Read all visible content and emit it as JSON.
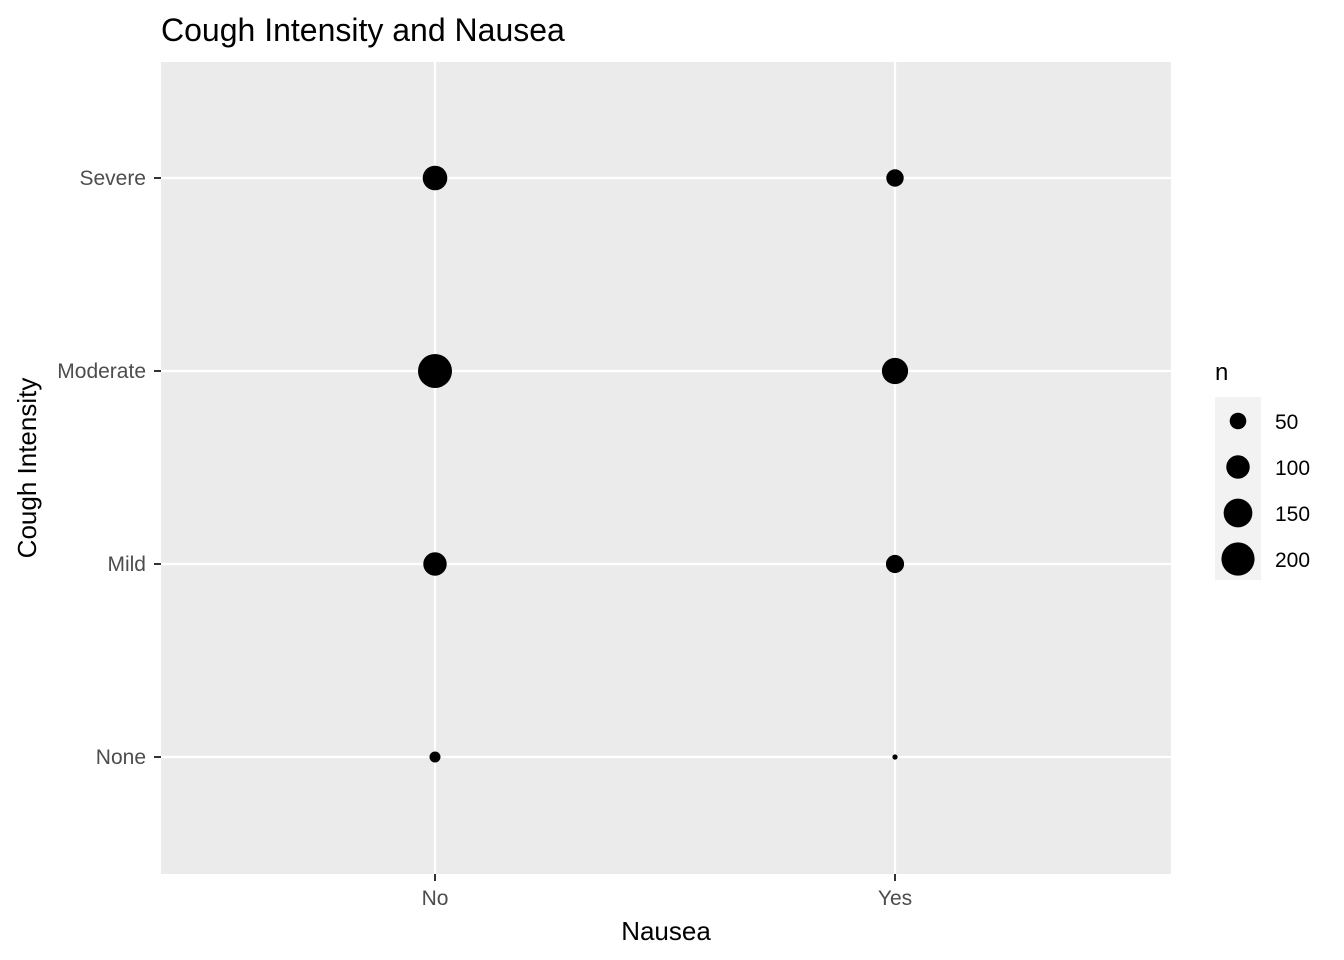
{
  "chart_data": {
    "type": "scatter",
    "title": "Cough Intensity and Nausea",
    "xlabel": "Nausea",
    "ylabel": "Cough Intensity",
    "x_categories": [
      "No",
      "Yes"
    ],
    "y_categories": [
      "None",
      "Mild",
      "Moderate",
      "Severe"
    ],
    "size_variable": "n",
    "points": [
      {
        "x": "No",
        "y": "Severe",
        "n": 110
      },
      {
        "x": "No",
        "y": "Moderate",
        "n": 210
      },
      {
        "x": "No",
        "y": "Mild",
        "n": 100
      },
      {
        "x": "No",
        "y": "None",
        "n": 22
      },
      {
        "x": "Yes",
        "y": "Severe",
        "n": 55
      },
      {
        "x": "Yes",
        "y": "Moderate",
        "n": 125
      },
      {
        "x": "Yes",
        "y": "Mild",
        "n": 60
      },
      {
        "x": "Yes",
        "y": "None",
        "n": 5
      }
    ],
    "legend": {
      "title": "n",
      "breaks": [
        50,
        100,
        150,
        200
      ],
      "placement": "right"
    },
    "grid": true,
    "colors": {
      "panel_background": "#ebebeb",
      "grid_line": "#ffffff",
      "point": "#000000",
      "tick_text": "#4d4d4d",
      "text": "#000000",
      "legend_key_background": "#f2f2f2"
    }
  }
}
